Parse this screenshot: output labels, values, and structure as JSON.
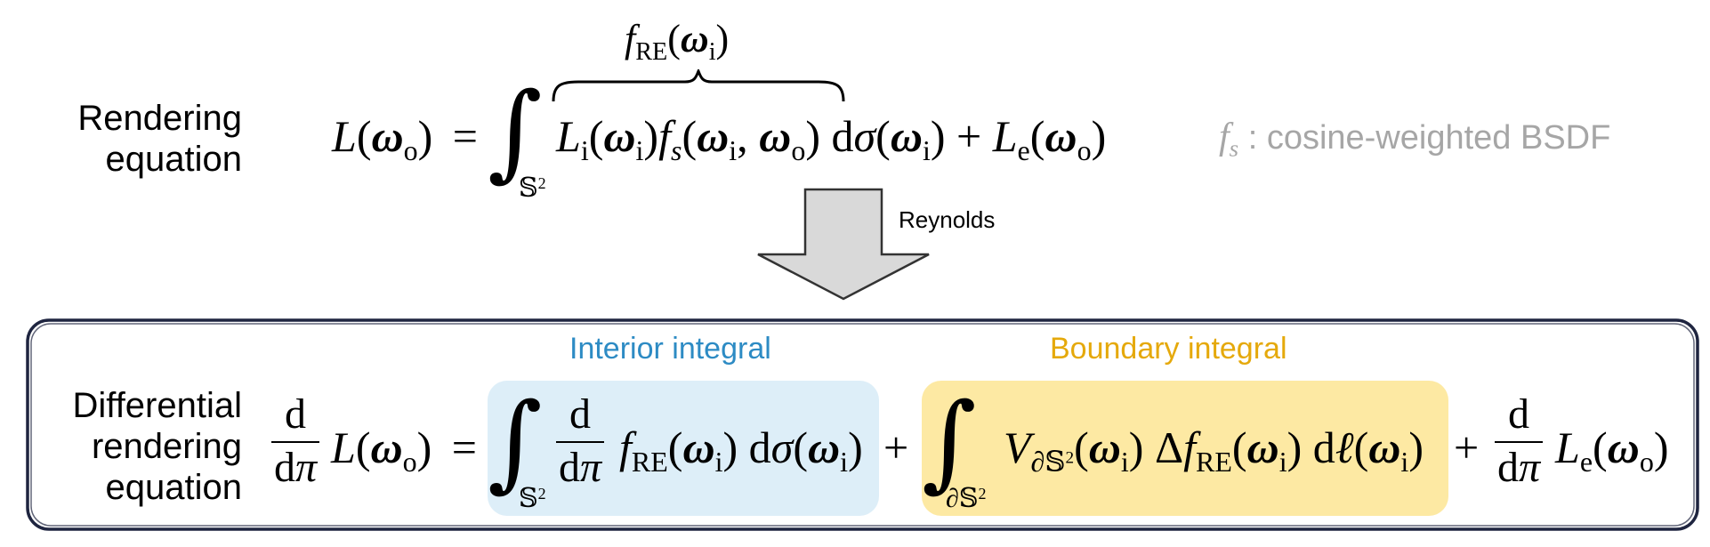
{
  "colors": {
    "interior_fill": "#ddeef8",
    "interior_text": "#2d8bc4",
    "boundary_fill": "#fde9a3",
    "boundary_text": "#e5a90b",
    "note_text": "#a6a6a6",
    "arrow_fill": "#d9d9d9",
    "arrow_stroke": "#333333",
    "frame_stroke": "#1f2540"
  },
  "rendering_equation": {
    "label": "Rendering\nequation",
    "lhs_L": "L",
    "omega": "ω",
    "o": "o",
    "i": "i",
    "e": "e",
    "equals": "=",
    "integral_domain_S": "𝕊",
    "integral_domain_exp": "2",
    "brace_label_f": "f",
    "brace_label_sub": "RE",
    "Li": "L",
    "fs_f": "f",
    "fs_s": "s",
    "comma": ",",
    "d": "d",
    "sigma": "σ",
    "plus": "+",
    "Le": "L"
  },
  "note": {
    "f": "f",
    "s": "s",
    "text": " : cosine-weighted BSDF"
  },
  "arrow": {
    "label": "Reynolds"
  },
  "differential_equation": {
    "label": "Differential\nrendering\nequation",
    "d": "d",
    "dpi": "dπ",
    "L": "L",
    "omega": "ω",
    "o": "o",
    "i": "i",
    "e": "e",
    "equals": "=",
    "plus": "+",
    "S": "𝕊",
    "exp": "2",
    "partial": "∂",
    "f": "f",
    "RE": "RE",
    "sigma": "σ",
    "V": "V",
    "Delta": "Δ",
    "ell": "ℓ"
  },
  "interior": {
    "title": "Interior integral"
  },
  "boundary": {
    "title": "Boundary integral"
  }
}
